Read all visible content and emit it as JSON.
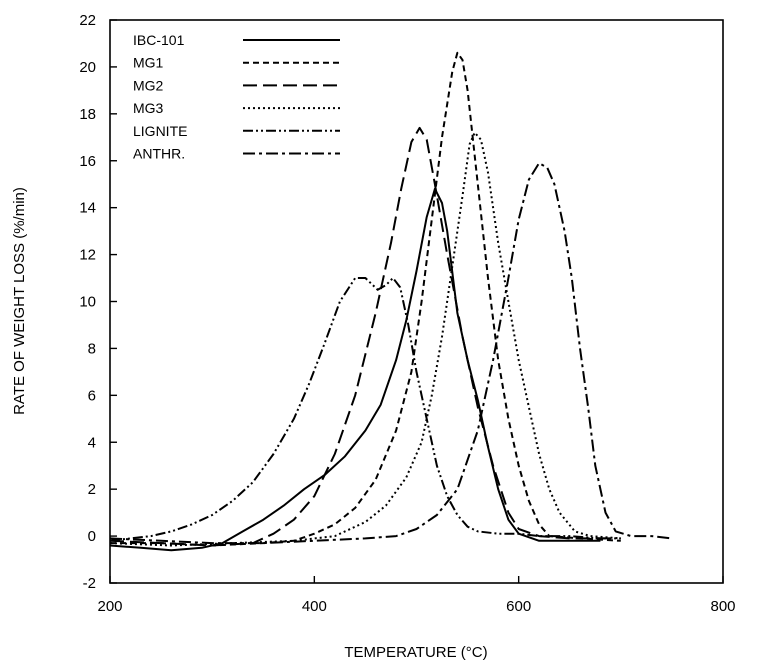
{
  "chart_data": {
    "type": "line",
    "title": "",
    "xlabel": "TEMPERATURE (°C)",
    "ylabel": "RATE OF WEIGHT LOSS (%/min)",
    "xlim": [
      200,
      800
    ],
    "ylim": [
      -2,
      22
    ],
    "xticks": [
      200,
      400,
      600,
      800
    ],
    "yticks": [
      -2,
      0,
      2,
      4,
      6,
      8,
      10,
      12,
      14,
      16,
      18,
      20,
      22
    ],
    "grid": false,
    "legend_position": "top-left",
    "series": [
      {
        "name": "IBC-101",
        "dash": "solid",
        "points": [
          [
            200,
            -0.4
          ],
          [
            230,
            -0.5
          ],
          [
            260,
            -0.6
          ],
          [
            290,
            -0.5
          ],
          [
            310,
            -0.3
          ],
          [
            330,
            0.2
          ],
          [
            350,
            0.7
          ],
          [
            370,
            1.3
          ],
          [
            390,
            2.0
          ],
          [
            410,
            2.6
          ],
          [
            430,
            3.4
          ],
          [
            450,
            4.5
          ],
          [
            465,
            5.6
          ],
          [
            480,
            7.5
          ],
          [
            490,
            9.2
          ],
          [
            500,
            11.3
          ],
          [
            510,
            13.6
          ],
          [
            518,
            14.8
          ],
          [
            525,
            14.2
          ],
          [
            530,
            13.0
          ],
          [
            540,
            9.5
          ],
          [
            550,
            7.5
          ],
          [
            560,
            5.8
          ],
          [
            570,
            3.8
          ],
          [
            580,
            2.0
          ],
          [
            590,
            0.7
          ],
          [
            600,
            0.1
          ],
          [
            620,
            -0.2
          ],
          [
            650,
            -0.2
          ],
          [
            680,
            -0.2
          ]
        ]
      },
      {
        "name": "MG1",
        "dash": "short",
        "points": [
          [
            200,
            -0.3
          ],
          [
            250,
            -0.3
          ],
          [
            300,
            -0.4
          ],
          [
            350,
            -0.3
          ],
          [
            380,
            -0.2
          ],
          [
            400,
            0.1
          ],
          [
            420,
            0.5
          ],
          [
            440,
            1.2
          ],
          [
            460,
            2.4
          ],
          [
            480,
            4.5
          ],
          [
            495,
            7.0
          ],
          [
            505,
            10.0
          ],
          [
            515,
            13.5
          ],
          [
            525,
            17.0
          ],
          [
            535,
            19.8
          ],
          [
            540,
            20.6
          ],
          [
            545,
            20.3
          ],
          [
            550,
            19.0
          ],
          [
            555,
            17.0
          ],
          [
            560,
            15.0
          ],
          [
            570,
            11.0
          ],
          [
            580,
            7.5
          ],
          [
            590,
            5.0
          ],
          [
            600,
            3.0
          ],
          [
            610,
            1.5
          ],
          [
            620,
            0.5
          ],
          [
            630,
            0.0
          ],
          [
            660,
            -0.1
          ],
          [
            700,
            -0.2
          ]
        ]
      },
      {
        "name": "MG2",
        "dash": "long",
        "points": [
          [
            200,
            -0.2
          ],
          [
            250,
            -0.3
          ],
          [
            300,
            -0.4
          ],
          [
            340,
            -0.3
          ],
          [
            360,
            0.1
          ],
          [
            380,
            0.7
          ],
          [
            400,
            1.7
          ],
          [
            420,
            3.5
          ],
          [
            440,
            6.0
          ],
          [
            460,
            9.5
          ],
          [
            475,
            12.5
          ],
          [
            485,
            14.8
          ],
          [
            495,
            16.8
          ],
          [
            503,
            17.4
          ],
          [
            510,
            16.9
          ],
          [
            518,
            15.0
          ],
          [
            530,
            12.0
          ],
          [
            545,
            8.5
          ],
          [
            560,
            5.5
          ],
          [
            575,
            3.0
          ],
          [
            590,
            1.0
          ],
          [
            600,
            0.3
          ],
          [
            620,
            0.0
          ],
          [
            650,
            -0.1
          ],
          [
            690,
            -0.1
          ]
        ]
      },
      {
        "name": "MG3",
        "dash": "dotted",
        "points": [
          [
            200,
            -0.3
          ],
          [
            260,
            -0.4
          ],
          [
            320,
            -0.3
          ],
          [
            380,
            -0.2
          ],
          [
            420,
            0.0
          ],
          [
            450,
            0.6
          ],
          [
            470,
            1.3
          ],
          [
            490,
            2.5
          ],
          [
            505,
            4.0
          ],
          [
            515,
            6.0
          ],
          [
            525,
            8.5
          ],
          [
            535,
            11.5
          ],
          [
            545,
            14.5
          ],
          [
            552,
            16.7
          ],
          [
            557,
            17.2
          ],
          [
            563,
            16.9
          ],
          [
            570,
            15.5
          ],
          [
            580,
            12.5
          ],
          [
            590,
            10.0
          ],
          [
            600,
            7.5
          ],
          [
            610,
            5.5
          ],
          [
            620,
            3.5
          ],
          [
            630,
            2.0
          ],
          [
            640,
            1.0
          ],
          [
            655,
            0.2
          ],
          [
            670,
            0.0
          ],
          [
            700,
            -0.1
          ]
        ]
      },
      {
        "name": "LIGNITE",
        "dash": "dash-dot-dot",
        "points": [
          [
            200,
            -0.2
          ],
          [
            220,
            -0.1
          ],
          [
            240,
            0.0
          ],
          [
            260,
            0.2
          ],
          [
            280,
            0.5
          ],
          [
            300,
            0.9
          ],
          [
            320,
            1.5
          ],
          [
            340,
            2.3
          ],
          [
            360,
            3.5
          ],
          [
            380,
            5.0
          ],
          [
            395,
            6.5
          ],
          [
            410,
            8.2
          ],
          [
            425,
            10.0
          ],
          [
            440,
            11.0
          ],
          [
            450,
            11.0
          ],
          [
            462,
            10.5
          ],
          [
            470,
            10.7
          ],
          [
            477,
            11.0
          ],
          [
            484,
            10.6
          ],
          [
            492,
            9.0
          ],
          [
            500,
            7.0
          ],
          [
            510,
            5.0
          ],
          [
            520,
            3.0
          ],
          [
            530,
            1.7
          ],
          [
            540,
            0.9
          ],
          [
            550,
            0.4
          ],
          [
            560,
            0.2
          ],
          [
            580,
            0.1
          ],
          [
            600,
            0.1
          ],
          [
            620,
            0.0
          ],
          [
            650,
            0.0
          ],
          [
            680,
            -0.1
          ],
          [
            700,
            -0.1
          ]
        ]
      },
      {
        "name": "ANTHR.",
        "dash": "dash-dot",
        "points": [
          [
            200,
            -0.1
          ],
          [
            250,
            -0.2
          ],
          [
            300,
            -0.3
          ],
          [
            350,
            -0.3
          ],
          [
            400,
            -0.2
          ],
          [
            450,
            -0.1
          ],
          [
            480,
            0.0
          ],
          [
            500,
            0.3
          ],
          [
            520,
            0.9
          ],
          [
            540,
            2.0
          ],
          [
            560,
            4.5
          ],
          [
            575,
            7.5
          ],
          [
            590,
            11.0
          ],
          [
            600,
            13.5
          ],
          [
            610,
            15.2
          ],
          [
            620,
            15.9
          ],
          [
            628,
            15.7
          ],
          [
            635,
            15.0
          ],
          [
            645,
            13.0
          ],
          [
            652,
            11.0
          ],
          [
            660,
            8.0
          ],
          [
            668,
            5.5
          ],
          [
            675,
            3.0
          ],
          [
            685,
            1.0
          ],
          [
            695,
            0.2
          ],
          [
            710,
            0.0
          ],
          [
            730,
            0.0
          ],
          [
            750,
            -0.1
          ]
        ]
      }
    ]
  }
}
